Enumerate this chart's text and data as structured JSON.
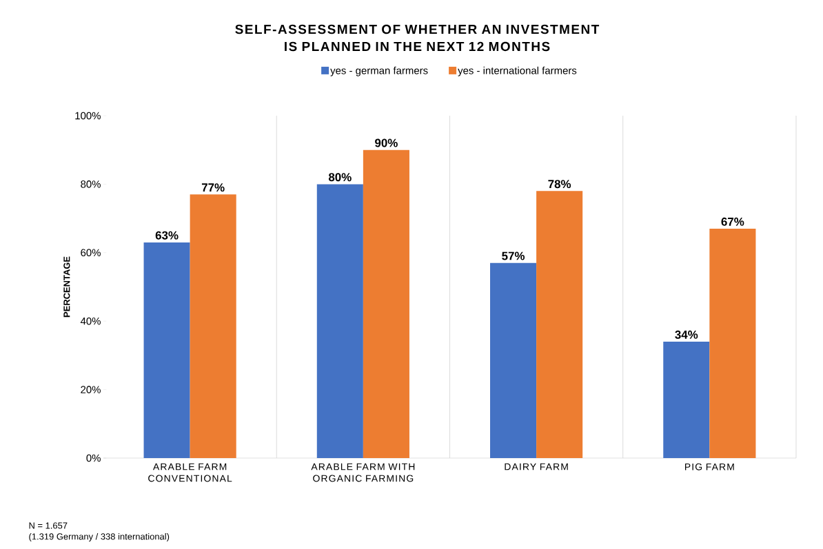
{
  "chart_data": {
    "type": "bar",
    "title": "SELF-ASSESSMENT OF WHETHER AN INVESTMENT IS PLANNED IN THE NEXT 12 MONTHS",
    "ylabel": "PERCENTAGE",
    "categories": [
      "ARABLE FARM CONVENTIONAL",
      "ARABLE FARM WITH ORGANIC FARMING",
      "DAIRY FARM",
      "PIG FARM"
    ],
    "series": [
      {
        "name": "yes - german farmers",
        "color": "#4472c4",
        "values": [
          63,
          80,
          57,
          34
        ],
        "value_labels": [
          "63%",
          "80%",
          "57%",
          "34%"
        ]
      },
      {
        "name": "yes - international farmers",
        "color": "#ed7d31",
        "values": [
          77,
          90,
          78,
          67
        ],
        "value_labels": [
          "77%",
          "90%",
          "78%",
          "67%"
        ]
      }
    ],
    "ylim": [
      0,
      100
    ],
    "yticks": [
      {
        "value": 0,
        "label": "0%"
      },
      {
        "value": 20,
        "label": "20%"
      },
      {
        "value": 40,
        "label": "40%"
      },
      {
        "value": 60,
        "label": "60%"
      },
      {
        "value": 80,
        "label": "80%"
      },
      {
        "value": 100,
        "label": "100%"
      }
    ],
    "grid": "x",
    "legend": "top",
    "annotations": [
      "N =  1.657",
      "(1.319 Germany / 338 international)"
    ]
  }
}
